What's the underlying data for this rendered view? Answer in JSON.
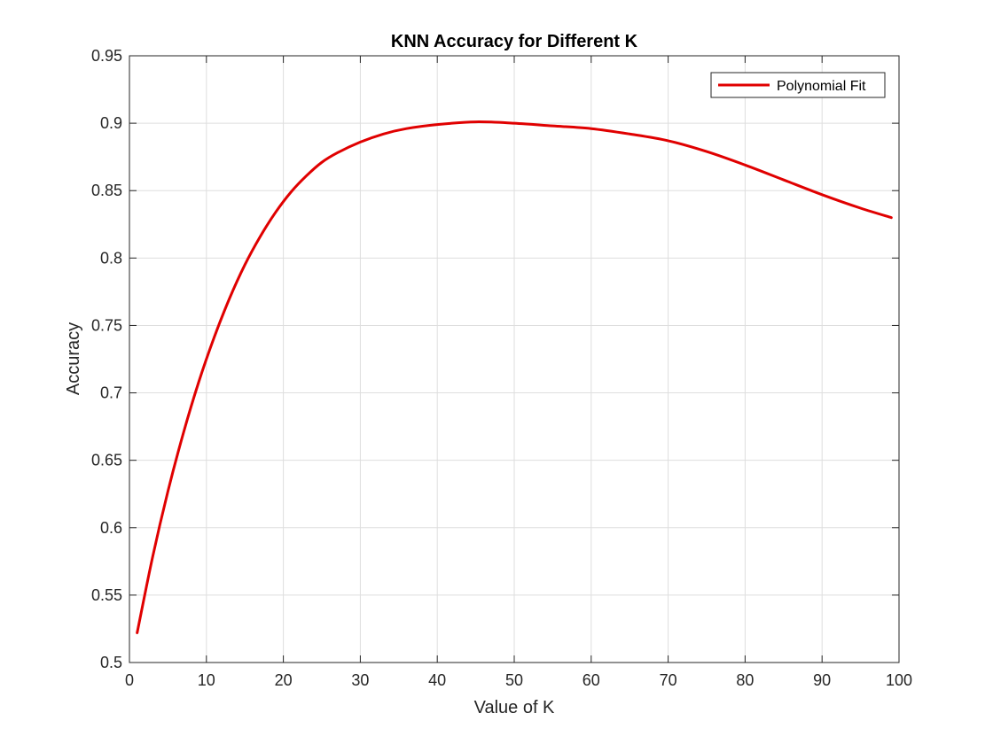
{
  "chart_data": {
    "type": "line",
    "title": "KNN Accuracy for Different K",
    "xlabel": "Value of K",
    "ylabel": "Accuracy",
    "xlim": [
      0,
      100
    ],
    "ylim": [
      0.5,
      0.95
    ],
    "xticks": [
      0,
      10,
      20,
      30,
      40,
      50,
      60,
      70,
      80,
      90,
      100
    ],
    "yticks": [
      0.5,
      0.55,
      0.6,
      0.65,
      0.7,
      0.75,
      0.8,
      0.85,
      0.9,
      0.95
    ],
    "xtick_labels": [
      "0",
      "10",
      "20",
      "30",
      "40",
      "50",
      "60",
      "70",
      "80",
      "90",
      "100"
    ],
    "ytick_labels": [
      "0.5",
      "0.55",
      "0.6",
      "0.65",
      "0.7",
      "0.75",
      "0.8",
      "0.85",
      "0.9",
      "0.95"
    ],
    "grid": true,
    "legend": {
      "placement": "top-right"
    },
    "series": [
      {
        "name": "Polynomial Fit",
        "color": "#e00000",
        "x": [
          1,
          3,
          5,
          7,
          9,
          11,
          13,
          15,
          17,
          19,
          21,
          23,
          25,
          27,
          30,
          33,
          36,
          40,
          45,
          50,
          55,
          60,
          65,
          70,
          75,
          80,
          85,
          90,
          95,
          99
        ],
        "y": [
          0.522,
          0.578,
          0.627,
          0.67,
          0.708,
          0.741,
          0.77,
          0.795,
          0.816,
          0.834,
          0.849,
          0.861,
          0.871,
          0.878,
          0.886,
          0.892,
          0.896,
          0.899,
          0.901,
          0.9,
          0.898,
          0.896,
          0.892,
          0.887,
          0.879,
          0.869,
          0.858,
          0.847,
          0.837,
          0.83
        ]
      }
    ]
  }
}
